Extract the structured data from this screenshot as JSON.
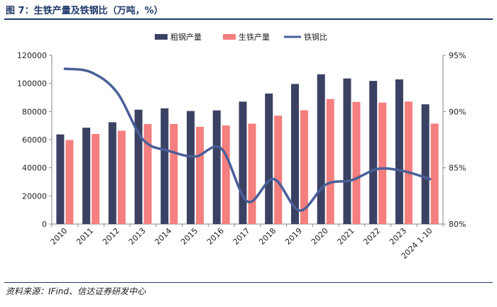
{
  "page": {
    "title": "图 7：生铁产量及铁钢比（万吨，%）",
    "source_label": "资料来源：",
    "source_text": "IFind、信达证券研发中心"
  },
  "colors": {
    "crude_steel": "#3b4163",
    "pig_iron": "#f57e7e",
    "ratio": "#4a5f99",
    "axis": "#888888"
  },
  "chart_data": {
    "type": "bar",
    "title": "生铁产量及铁钢比（万吨，%）",
    "categories": [
      "2010",
      "2011",
      "2012",
      "2013",
      "2014",
      "2015",
      "2016",
      "2017",
      "2018",
      "2019",
      "2020",
      "2021",
      "2022",
      "2023",
      "2024 1-10"
    ],
    "series": [
      {
        "name": "粗钢产量",
        "type": "bar",
        "axis": "left",
        "values": [
          63723,
          68528,
          72388,
          81314,
          82270,
          80383,
          80837,
          87074,
          92826,
          99634,
          106477,
          103524,
          101796,
          102887,
          85150
        ]
      },
      {
        "name": "生铁产量",
        "type": "bar",
        "axis": "left",
        "values": [
          59733,
          64051,
          66354,
          71150,
          71160,
          69141,
          70074,
          71362,
          77105,
          80937,
          88898,
          86857,
          86383,
          87101,
          71415
        ]
      },
      {
        "name": "铁钢比",
        "type": "line",
        "axis": "right",
        "values": [
          93.8,
          93.5,
          91.7,
          87.5,
          86.5,
          86.0,
          86.7,
          82.0,
          84.0,
          81.2,
          83.5,
          83.9,
          84.9,
          84.7,
          84.0
        ]
      }
    ],
    "y_left": {
      "min": 0,
      "max": 120000,
      "ticks": [
        "0",
        "20000",
        "40000",
        "60000",
        "80000",
        "100000",
        "120000"
      ]
    },
    "y_right": {
      "min": 80,
      "max": 95,
      "ticks": [
        "80%",
        "85%",
        "90%",
        "95%"
      ]
    },
    "legend_position": "top-right"
  }
}
